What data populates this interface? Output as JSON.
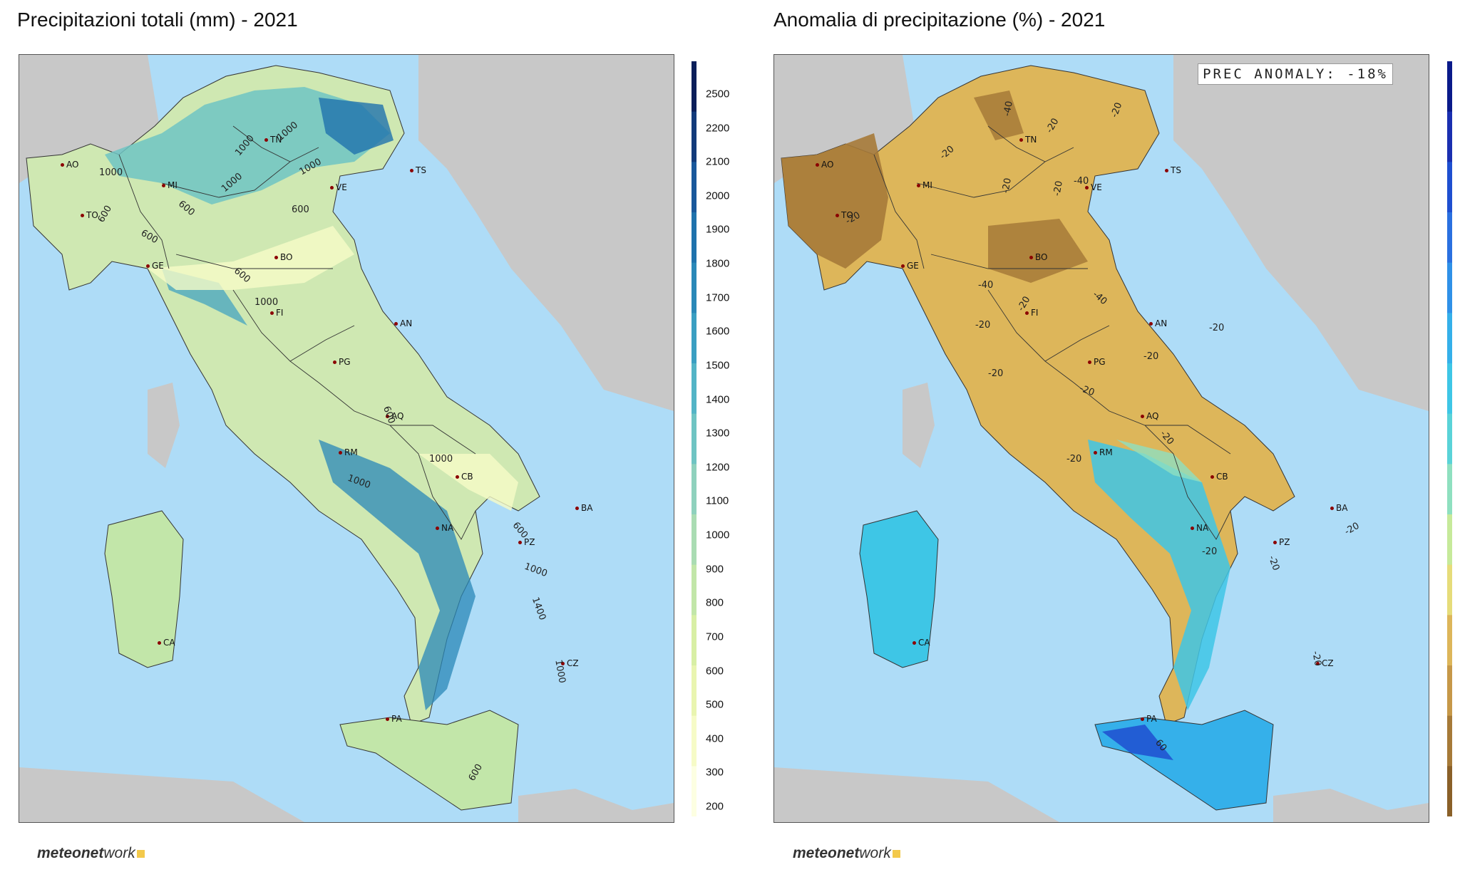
{
  "left_panel": {
    "title": "Precipitazioni totali (mm) - 2021",
    "contour_labels": [
      "1000",
      "1000",
      "1000",
      "1000",
      "1000",
      "600",
      "600",
      "600",
      "600",
      "1000",
      "1000",
      "1000",
      "600",
      "600",
      "1000",
      "1400",
      "1000",
      "600",
      "600"
    ],
    "colorbar": {
      "ticks": [
        "2500",
        "2200",
        "2100",
        "2000",
        "1900",
        "1800",
        "1700",
        "1600",
        "1500",
        "1400",
        "1300",
        "1200",
        "1100",
        "1000",
        "900",
        "800",
        "700",
        "600",
        "500",
        "400",
        "300",
        "200"
      ],
      "colors": [
        "#0b1f5a",
        "#123a7a",
        "#19589b",
        "#1f72ac",
        "#2a88b8",
        "#3a9fc2",
        "#53b4c6",
        "#6fc4c3",
        "#8fd1bd",
        "#aadcb3",
        "#c2e6a9",
        "#d8efa5",
        "#e9f5b0",
        "#f6fbc7",
        "#fdffe2"
      ]
    },
    "logo": {
      "bold": "meteonet",
      "thin": "work"
    }
  },
  "right_panel": {
    "title": "Anomalia di precipitazione (%) - 2021",
    "anomaly_label": "PREC ANOMALY: -18%",
    "contour_labels": [
      "-40",
      "-20",
      "-20",
      "-20",
      "-20",
      "-20",
      "-20",
      "-40",
      "-20",
      "-40",
      "-40",
      "-20",
      "-20",
      "-20",
      "-20",
      "-20",
      "-20",
      "-20",
      "-20",
      "-20",
      "-20",
      "60",
      "-20"
    ],
    "colorbar": {
      "colors": [
        "#0a1a8a",
        "#1a2fb0",
        "#1e4fd0",
        "#2a70e0",
        "#2f91e8",
        "#35b0ea",
        "#3ec6e6",
        "#5ad3d8",
        "#8fe0c0",
        "#c6ea9a",
        "#e6dc7a",
        "#ddb65a",
        "#c69848",
        "#a67a38",
        "#8a6028"
      ]
    },
    "logo": {
      "bold": "meteonet",
      "thin": "work"
    }
  },
  "cities": [
    {
      "name": "AO"
    },
    {
      "name": "MI"
    },
    {
      "name": "TN"
    },
    {
      "name": "VE"
    },
    {
      "name": "TS"
    },
    {
      "name": "TO"
    },
    {
      "name": "GE"
    },
    {
      "name": "BO"
    },
    {
      "name": "FI"
    },
    {
      "name": "AN"
    },
    {
      "name": "PG"
    },
    {
      "name": "AQ"
    },
    {
      "name": "RM"
    },
    {
      "name": "CB"
    },
    {
      "name": "NA"
    },
    {
      "name": "BA"
    },
    {
      "name": "PZ"
    },
    {
      "name": "CA"
    },
    {
      "name": "CZ"
    },
    {
      "name": "PA"
    }
  ]
}
